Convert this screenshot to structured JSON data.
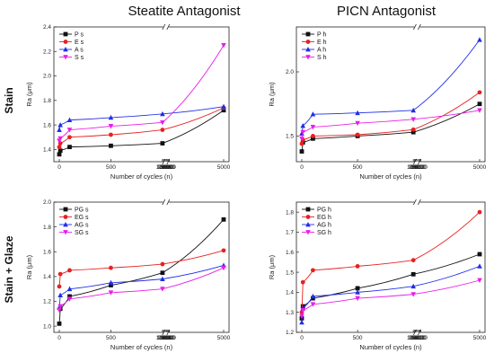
{
  "figure": {
    "col_titles": [
      "Steatite Antagonist",
      "PICN Antagonist"
    ],
    "row_titles": [
      "Stain",
      "Stain + Glaze"
    ]
  },
  "chart_data": [
    {
      "type": "line",
      "title": "Steatite Antagonist",
      "row_label": "Stain",
      "xlabel": "Number of cycles (n)",
      "ylabel": "Ra (μm)",
      "ylim": [
        1.3,
        2.4
      ],
      "yticks": [
        "1.4",
        "1.6",
        "1.8",
        "2.0",
        "2.2",
        "2.4"
      ],
      "xticks": [
        "0",
        "500",
        "1000",
        "1500",
        "2000",
        "2500",
        "3000",
        "3500",
        "4000",
        "4500",
        "5000"
      ],
      "axis_break": [
        1000,
        4500
      ],
      "legend": "top-left",
      "series": [
        {
          "name": "P s",
          "color": "#111111",
          "marker": "square",
          "x": [
            0,
            10,
            100,
            500,
            1000,
            5000
          ],
          "y": [
            1.36,
            1.39,
            1.42,
            1.43,
            1.45,
            1.72
          ]
        },
        {
          "name": "E s",
          "color": "#e82020",
          "marker": "circle",
          "x": [
            0,
            10,
            100,
            500,
            1000,
            5000
          ],
          "y": [
            1.42,
            1.45,
            1.5,
            1.52,
            1.56,
            1.74
          ]
        },
        {
          "name": "A s",
          "color": "#1f2ee8",
          "marker": "triangle-up",
          "x": [
            0,
            10,
            100,
            500,
            1000,
            5000
          ],
          "y": [
            1.56,
            1.6,
            1.64,
            1.66,
            1.69,
            1.75
          ]
        },
        {
          "name": "S s",
          "color": "#e81ee8",
          "marker": "triangle-down",
          "x": [
            0,
            10,
            100,
            500,
            1000,
            5000
          ],
          "y": [
            1.47,
            1.49,
            1.56,
            1.59,
            1.62,
            2.25
          ]
        }
      ]
    },
    {
      "type": "line",
      "title": "PICN Antagonist",
      "row_label": "Stain",
      "xlabel": "Number of cycles (n)",
      "ylabel": "Ra (μm)",
      "ylim": [
        1.3,
        2.35
      ],
      "yticks": [
        "1.5",
        "2.0"
      ],
      "xticks": [
        "0",
        "500",
        "1000",
        "1500",
        "2000",
        "2500",
        "3000",
        "3500",
        "4000",
        "4500",
        "5000"
      ],
      "axis_break": [
        1000,
        4500
      ],
      "legend": "top-left",
      "series": [
        {
          "name": "P h",
          "color": "#111111",
          "marker": "square",
          "x": [
            0,
            10,
            100,
            500,
            1000,
            5000
          ],
          "y": [
            1.38,
            1.45,
            1.48,
            1.5,
            1.53,
            1.75
          ]
        },
        {
          "name": "E h",
          "color": "#e82020",
          "marker": "circle",
          "x": [
            0,
            10,
            100,
            500,
            1000,
            5000
          ],
          "y": [
            1.44,
            1.47,
            1.5,
            1.51,
            1.55,
            1.84
          ]
        },
        {
          "name": "A h",
          "color": "#1f2ee8",
          "marker": "triangle-up",
          "x": [
            0,
            10,
            100,
            500,
            1000,
            5000
          ],
          "y": [
            1.52,
            1.58,
            1.67,
            1.68,
            1.7,
            2.25
          ]
        },
        {
          "name": "S h",
          "color": "#e81ee8",
          "marker": "triangle-down",
          "x": [
            0,
            10,
            100,
            500,
            1000,
            5000
          ],
          "y": [
            1.48,
            1.53,
            1.57,
            1.6,
            1.63,
            1.7
          ]
        }
      ]
    },
    {
      "type": "line",
      "title": "Steatite Antagonist",
      "row_label": "Stain + Glaze",
      "xlabel": "Number of cycles (n)",
      "ylabel": "Ra (μm)",
      "ylim": [
        0.95,
        2.0
      ],
      "yticks": [
        "1.0",
        "1.2",
        "1.4",
        "1.6",
        "1.8",
        "2.0"
      ],
      "xticks": [
        "0",
        "500",
        "1000",
        "1500",
        "2000",
        "2500",
        "3000",
        "3500",
        "4000",
        "4500",
        "5000"
      ],
      "axis_break": [
        1000,
        4500
      ],
      "legend": "top-left",
      "series": [
        {
          "name": "PG s",
          "color": "#111111",
          "marker": "square",
          "x": [
            0,
            10,
            100,
            500,
            1000,
            5000
          ],
          "y": [
            1.02,
            1.14,
            1.24,
            1.33,
            1.43,
            1.86
          ]
        },
        {
          "name": "EG s",
          "color": "#e82020",
          "marker": "circle",
          "x": [
            0,
            10,
            100,
            500,
            1000,
            5000
          ],
          "y": [
            1.32,
            1.42,
            1.45,
            1.47,
            1.5,
            1.61
          ]
        },
        {
          "name": "AG s",
          "color": "#1f2ee8",
          "marker": "triangle-up",
          "x": [
            0,
            10,
            100,
            500,
            1000,
            5000
          ],
          "y": [
            1.15,
            1.25,
            1.3,
            1.35,
            1.38,
            1.49
          ]
        },
        {
          "name": "SG s",
          "color": "#e81ee8",
          "marker": "triangle-down",
          "x": [
            0,
            10,
            100,
            500,
            1000,
            5000
          ],
          "y": [
            1.13,
            1.16,
            1.22,
            1.27,
            1.3,
            1.47
          ]
        }
      ]
    },
    {
      "type": "line",
      "title": "PICN Antagonist",
      "row_label": "Stain + Glaze",
      "xlabel": "Number of cycles (n)",
      "ylabel": "Ra (μm)",
      "ylim": [
        1.2,
        1.85
      ],
      "yticks": [
        "1.2",
        "1.3",
        "1.4",
        "1.5",
        "1.6",
        "1.7",
        "1.8"
      ],
      "xticks": [
        "0",
        "500",
        "1000",
        "1500",
        "2000",
        "2500",
        "3000",
        "3500",
        "4000",
        "4500",
        "5000"
      ],
      "axis_break": [
        1000,
        4500
      ],
      "legend": "top-left",
      "series": [
        {
          "name": "PG h",
          "color": "#111111",
          "marker": "square",
          "x": [
            0,
            10,
            100,
            500,
            1000,
            5000
          ],
          "y": [
            1.27,
            1.33,
            1.37,
            1.42,
            1.49,
            1.59
          ]
        },
        {
          "name": "EG h",
          "color": "#e82020",
          "marker": "circle",
          "x": [
            0,
            10,
            100,
            500,
            1000,
            5000
          ],
          "y": [
            1.3,
            1.45,
            1.51,
            1.53,
            1.56,
            1.8
          ]
        },
        {
          "name": "AG h",
          "color": "#1f2ee8",
          "marker": "triangle-up",
          "x": [
            0,
            10,
            100,
            500,
            1000,
            5000
          ],
          "y": [
            1.25,
            1.32,
            1.38,
            1.4,
            1.43,
            1.53
          ]
        },
        {
          "name": "SG h",
          "color": "#e81ee8",
          "marker": "triangle-down",
          "x": [
            0,
            10,
            100,
            500,
            1000,
            5000
          ],
          "y": [
            1.28,
            1.31,
            1.34,
            1.37,
            1.39,
            1.46
          ]
        }
      ]
    }
  ]
}
